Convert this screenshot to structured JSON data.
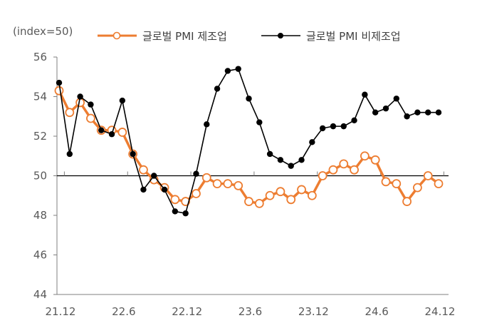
{
  "chart_data": {
    "type": "line",
    "unit_label": "(index=50)",
    "x_tick_labels": [
      "21.12",
      "22.6",
      "22.12",
      "23.6",
      "23.12",
      "24.6",
      "24.12"
    ],
    "x": [
      "21.12",
      "22.1",
      "22.2",
      "22.3",
      "22.4",
      "22.5",
      "22.6",
      "22.7",
      "22.8",
      "22.9",
      "22.10",
      "22.11",
      "22.12",
      "23.1",
      "23.2",
      "23.3",
      "23.4",
      "23.5",
      "23.6",
      "23.7",
      "23.8",
      "23.9",
      "23.10",
      "23.11",
      "23.12",
      "24.1",
      "24.2",
      "24.3",
      "24.4",
      "24.5",
      "24.6",
      "24.7",
      "24.8",
      "24.9",
      "24.10",
      "24.11",
      "24.12"
    ],
    "ylim": [
      44,
      56
    ],
    "yticks": [
      44,
      46,
      48,
      50,
      52,
      54,
      56
    ],
    "reference_line": 50,
    "grid": false,
    "legend_position": "top",
    "series": [
      {
        "name": "글로벌 PMI 제조업",
        "color": "#ED7D31",
        "marker": "hollow-circle",
        "values": [
          54.3,
          53.2,
          53.7,
          52.9,
          52.3,
          52.3,
          52.2,
          51.1,
          50.3,
          49.8,
          49.4,
          48.8,
          48.7,
          49.1,
          49.9,
          49.6,
          49.6,
          49.5,
          48.7,
          48.6,
          49.0,
          49.2,
          48.8,
          49.3,
          49.0,
          50.0,
          50.3,
          50.6,
          50.3,
          51.0,
          50.8,
          49.7,
          49.6,
          48.7,
          49.4,
          50.0,
          49.6
        ]
      },
      {
        "name": "글로벌 PMI 비제조업",
        "color": "#000000",
        "marker": "filled-circle",
        "values": [
          54.7,
          51.1,
          54.0,
          53.6,
          52.3,
          52.1,
          53.8,
          51.1,
          49.3,
          50.0,
          49.3,
          48.2,
          48.1,
          50.1,
          52.6,
          54.4,
          55.3,
          55.4,
          53.9,
          52.7,
          51.1,
          50.8,
          50.5,
          50.8,
          51.7,
          52.4,
          52.5,
          52.5,
          52.8,
          54.1,
          53.2,
          53.4,
          53.9,
          53.0,
          53.2,
          53.2,
          53.2
        ]
      }
    ]
  }
}
